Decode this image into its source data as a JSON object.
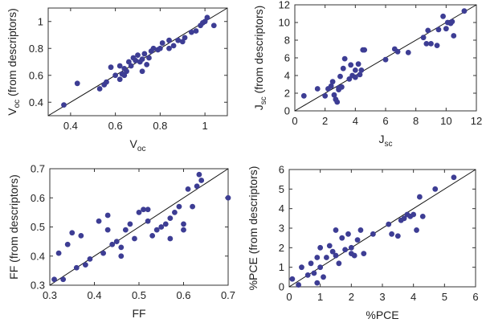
{
  "chart_data": [
    {
      "id": "voc",
      "type": "scatter",
      "title": "",
      "xlabel": {
        "base": "V",
        "sub": "oc"
      },
      "ylabel": {
        "base": "V",
        "sub": "oc",
        "suffix": " (from descriptors)"
      },
      "xlim": [
        0.3,
        1.1
      ],
      "ylim": [
        0.3,
        1.1
      ],
      "xticks": [
        0.4,
        0.6,
        0.8,
        1.0
      ],
      "xtick_labels": [
        "0.4",
        "0.6",
        "0.8",
        "1"
      ],
      "yticks": [
        0.4,
        0.6,
        0.8,
        1.0
      ],
      "ytick_labels": [
        "0.4",
        "0.6",
        "0.8",
        "1"
      ],
      "reference_line": "y = x",
      "grid": false,
      "points": [
        [
          0.37,
          0.38
        ],
        [
          0.43,
          0.54
        ],
        [
          0.53,
          0.5
        ],
        [
          0.55,
          0.53
        ],
        [
          0.56,
          0.55
        ],
        [
          0.58,
          0.66
        ],
        [
          0.6,
          0.6
        ],
        [
          0.62,
          0.57
        ],
        [
          0.63,
          0.61
        ],
        [
          0.64,
          0.6
        ],
        [
          0.64,
          0.65
        ],
        [
          0.65,
          0.63
        ],
        [
          0.66,
          0.7
        ],
        [
          0.67,
          0.67
        ],
        [
          0.68,
          0.73
        ],
        [
          0.69,
          0.71
        ],
        [
          0.7,
          0.75
        ],
        [
          0.71,
          0.7
        ],
        [
          0.72,
          0.72
        ],
        [
          0.73,
          0.76
        ],
        [
          0.74,
          0.68
        ],
        [
          0.75,
          0.73
        ],
        [
          0.76,
          0.78
        ],
        [
          0.77,
          0.8
        ],
        [
          0.79,
          0.79
        ],
        [
          0.8,
          0.8
        ],
        [
          0.81,
          0.84
        ],
        [
          0.84,
          0.8
        ],
        [
          0.86,
          0.82
        ],
        [
          0.88,
          0.86
        ],
        [
          0.9,
          0.85
        ],
        [
          0.91,
          0.88
        ],
        [
          0.94,
          0.92
        ],
        [
          0.96,
          0.93
        ],
        [
          0.98,
          0.97
        ],
        [
          0.99,
          0.99
        ],
        [
          1.0,
          1.0
        ],
        [
          1.01,
          1.03
        ],
        [
          1.04,
          0.97
        ],
        [
          0.84,
          0.86
        ],
        [
          0.62,
          0.67
        ],
        [
          0.72,
          0.63
        ]
      ]
    },
    {
      "id": "jsc",
      "type": "scatter",
      "title": "",
      "xlabel": {
        "base": "J",
        "sub": "sc"
      },
      "ylabel": {
        "base": "J",
        "sub": "sc",
        "suffix": " (from descriptors)"
      },
      "xlim": [
        0,
        12
      ],
      "ylim": [
        0,
        12
      ],
      "xticks": [
        0,
        2,
        4,
        6,
        8,
        10,
        12
      ],
      "xtick_labels": [
        "0",
        "2",
        "4",
        "6",
        "8",
        "10",
        "12"
      ],
      "yticks": [
        0,
        2,
        4,
        6,
        8,
        10,
        12
      ],
      "ytick_labels": [
        "0",
        "2",
        "4",
        "6",
        "8",
        "10",
        "12"
      ],
      "reference_line": "y = x",
      "grid": false,
      "points": [
        [
          0.6,
          1.7
        ],
        [
          1.5,
          2.5
        ],
        [
          2.0,
          1.7
        ],
        [
          2.2,
          2.5
        ],
        [
          2.4,
          2.8
        ],
        [
          2.5,
          3.3
        ],
        [
          2.6,
          1.8
        ],
        [
          2.7,
          1.3
        ],
        [
          2.8,
          1.0
        ],
        [
          2.9,
          2.6
        ],
        [
          3.0,
          3.9
        ],
        [
          3.1,
          2.7
        ],
        [
          3.2,
          4.8
        ],
        [
          3.3,
          5.9
        ],
        [
          3.6,
          3.6
        ],
        [
          3.7,
          5.2
        ],
        [
          3.8,
          4.0
        ],
        [
          4.0,
          4.6
        ],
        [
          4.2,
          5.3
        ],
        [
          4.3,
          4.1
        ],
        [
          4.4,
          4.6
        ],
        [
          4.5,
          6.9
        ],
        [
          4.6,
          6.9
        ],
        [
          6.0,
          5.8
        ],
        [
          6.6,
          7.0
        ],
        [
          6.8,
          6.7
        ],
        [
          7.5,
          6.6
        ],
        [
          8.5,
          8.3
        ],
        [
          8.7,
          7.6
        ],
        [
          8.8,
          9.1
        ],
        [
          9.0,
          7.6
        ],
        [
          9.5,
          9.2
        ],
        [
          9.8,
          10.7
        ],
        [
          10.0,
          9.3
        ],
        [
          10.1,
          10.0
        ],
        [
          10.3,
          9.9
        ],
        [
          10.4,
          10.1
        ],
        [
          10.5,
          8.5
        ],
        [
          11.2,
          11.3
        ],
        [
          9.4,
          7.4
        ],
        [
          2.9,
          2.4
        ],
        [
          4.0,
          3.8
        ]
      ]
    },
    {
      "id": "ff",
      "type": "scatter",
      "title": "",
      "xlabel": {
        "base": "FF",
        "sub": ""
      },
      "ylabel": {
        "base": "FF",
        "sub": "",
        "suffix": " (from descriptors)"
      },
      "xlim": [
        0.3,
        0.7
      ],
      "ylim": [
        0.3,
        0.7
      ],
      "xticks": [
        0.3,
        0.4,
        0.5,
        0.6,
        0.7
      ],
      "xtick_labels": [
        "0.3",
        "0.4",
        "0.5",
        "0.6",
        "0.7"
      ],
      "yticks": [
        0.3,
        0.4,
        0.5,
        0.6,
        0.7
      ],
      "ytick_labels": [
        "0.3",
        "0.4",
        "0.5",
        "0.6",
        "0.7"
      ],
      "reference_line": "y = x",
      "grid": false,
      "points": [
        [
          0.31,
          0.32
        ],
        [
          0.32,
          0.41
        ],
        [
          0.34,
          0.44
        ],
        [
          0.35,
          0.48
        ],
        [
          0.36,
          0.36
        ],
        [
          0.37,
          0.47
        ],
        [
          0.38,
          0.37
        ],
        [
          0.39,
          0.39
        ],
        [
          0.41,
          0.52
        ],
        [
          0.42,
          0.41
        ],
        [
          0.43,
          0.49
        ],
        [
          0.43,
          0.54
        ],
        [
          0.44,
          0.44
        ],
        [
          0.45,
          0.45
        ],
        [
          0.46,
          0.43
        ],
        [
          0.47,
          0.49
        ],
        [
          0.48,
          0.51
        ],
        [
          0.49,
          0.46
        ],
        [
          0.5,
          0.55
        ],
        [
          0.51,
          0.56
        ],
        [
          0.52,
          0.52
        ],
        [
          0.53,
          0.47
        ],
        [
          0.54,
          0.49
        ],
        [
          0.55,
          0.5
        ],
        [
          0.56,
          0.51
        ],
        [
          0.57,
          0.53
        ],
        [
          0.57,
          0.46
        ],
        [
          0.58,
          0.55
        ],
        [
          0.59,
          0.57
        ],
        [
          0.6,
          0.49
        ],
        [
          0.61,
          0.63
        ],
        [
          0.62,
          0.57
        ],
        [
          0.63,
          0.64
        ],
        [
          0.635,
          0.68
        ],
        [
          0.64,
          0.66
        ],
        [
          0.7,
          0.6
        ],
        [
          0.33,
          0.32
        ],
        [
          0.46,
          0.4
        ],
        [
          0.52,
          0.56
        ],
        [
          0.6,
          0.51
        ]
      ]
    },
    {
      "id": "pce",
      "type": "scatter",
      "title": "",
      "xlabel": {
        "base": "%PCE",
        "sub": ""
      },
      "ylabel": {
        "base": "%PCE",
        "sub": "",
        "suffix": " (from descriptors)"
      },
      "xlim": [
        0,
        6
      ],
      "ylim": [
        0,
        6
      ],
      "xticks": [
        0,
        1,
        2,
        3,
        4,
        5,
        6
      ],
      "xtick_labels": [
        "0",
        "1",
        "2",
        "3",
        "4",
        "5",
        "6"
      ],
      "yticks": [
        0,
        1,
        2,
        3,
        4,
        5,
        6
      ],
      "ytick_labels": [
        "0",
        "1",
        "2",
        "3",
        "4",
        "5",
        "6"
      ],
      "reference_line": "y = x",
      "grid": false,
      "points": [
        [
          0.1,
          0.4
        ],
        [
          0.3,
          0.1
        ],
        [
          0.4,
          1.0
        ],
        [
          0.6,
          0.6
        ],
        [
          0.7,
          1.2
        ],
        [
          0.8,
          0.7
        ],
        [
          0.9,
          1.5
        ],
        [
          1.0,
          1.0
        ],
        [
          1.0,
          2.0
        ],
        [
          1.1,
          0.5
        ],
        [
          1.2,
          1.5
        ],
        [
          1.3,
          2.1
        ],
        [
          1.4,
          1.8
        ],
        [
          1.5,
          1.6
        ],
        [
          1.5,
          2.9
        ],
        [
          1.6,
          1.2
        ],
        [
          1.7,
          2.5
        ],
        [
          1.8,
          1.9
        ],
        [
          1.9,
          2.7
        ],
        [
          2.0,
          1.7
        ],
        [
          2.1,
          1.6
        ],
        [
          2.2,
          2.4
        ],
        [
          2.3,
          2.9
        ],
        [
          2.4,
          1.7
        ],
        [
          2.7,
          2.7
        ],
        [
          3.2,
          3.2
        ],
        [
          3.3,
          2.7
        ],
        [
          3.5,
          2.6
        ],
        [
          3.6,
          3.4
        ],
        [
          3.7,
          3.5
        ],
        [
          3.8,
          3.7
        ],
        [
          3.9,
          3.6
        ],
        [
          4.0,
          3.7
        ],
        [
          4.1,
          2.9
        ],
        [
          4.2,
          4.6
        ],
        [
          4.3,
          3.6
        ],
        [
          4.7,
          5.0
        ],
        [
          5.3,
          5.6
        ],
        [
          0.9,
          0.2
        ],
        [
          2.0,
          2.0
        ]
      ]
    }
  ]
}
